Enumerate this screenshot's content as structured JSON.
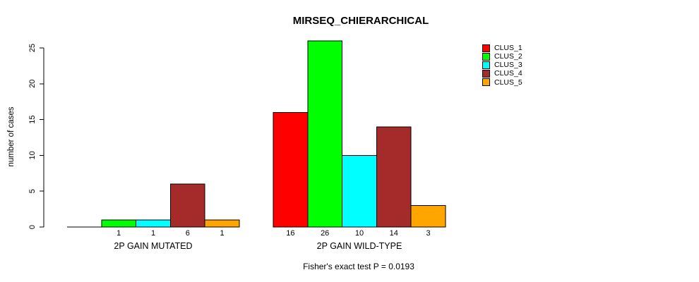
{
  "chart_data": {
    "type": "bar",
    "title": "MIRSEQ_CHIERARCHICAL",
    "ylabel": "number of cases",
    "xlabel": "",
    "categories": [
      "2P GAIN MUTATED",
      "2P GAIN WILD-TYPE"
    ],
    "series": [
      {
        "name": "CLUS_1",
        "color": "#FF0000",
        "values": [
          0,
          16
        ]
      },
      {
        "name": "CLUS_2",
        "color": "#00FF00",
        "values": [
          1,
          26
        ]
      },
      {
        "name": "CLUS_3",
        "color": "#00FFFF",
        "values": [
          1,
          10
        ]
      },
      {
        "name": "CLUS_4",
        "color": "#A52A2A",
        "values": [
          6,
          14
        ]
      },
      {
        "name": "CLUS_5",
        "color": "#FFA500",
        "values": [
          1,
          3
        ]
      }
    ],
    "bar_value_labels": [
      [
        "",
        "1",
        "1",
        "6",
        "1"
      ],
      [
        "16",
        "26",
        "10",
        "14",
        "3"
      ]
    ],
    "yticks": [
      0,
      5,
      10,
      15,
      20,
      25
    ],
    "ylim": [
      0,
      25
    ],
    "grid": false,
    "legend_position": "top-right",
    "annotation": "Fisher's exact test P = 0.0193",
    "bar_border_color": "#000000",
    "axis_color": "#000000"
  }
}
